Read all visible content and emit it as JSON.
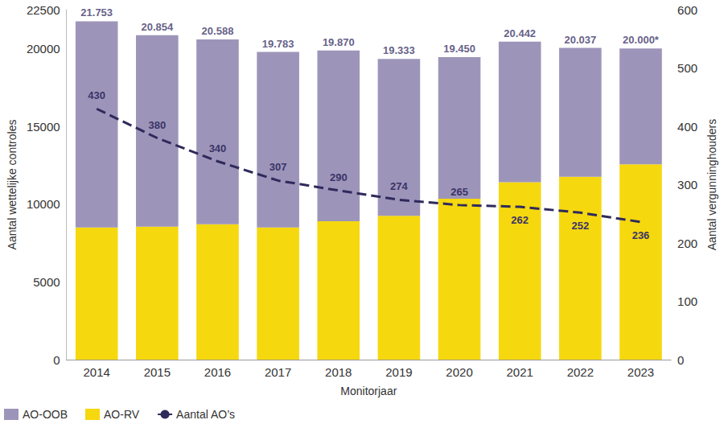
{
  "chart_data": {
    "type": "bar",
    "stacked": true,
    "categories": [
      "2014",
      "2015",
      "2016",
      "2017",
      "2018",
      "2019",
      "2020",
      "2021",
      "2022",
      "2023"
    ],
    "x_label": "Monitorjaar",
    "y_label": "Aantal wettelijke controles",
    "y2_label": "Aantal vergunninghouders",
    "ylim": [
      0,
      22500
    ],
    "yticks": [
      0,
      5000,
      10000,
      15000,
      20000
    ],
    "y2lim": [
      0,
      600
    ],
    "y2ticks": [
      0,
      100,
      200,
      300,
      400,
      500,
      600
    ],
    "grid": false,
    "legend": "bottom left",
    "series": [
      {
        "name": "AO-OOB",
        "type": "bar",
        "color": "#9d95b9",
        "values": [
          13253,
          12304,
          11888,
          11283,
          10970,
          10083,
          9100,
          9042,
          8287,
          7450
        ]
      },
      {
        "name": "AO-RV",
        "type": "bar",
        "color": "#f6d80e",
        "values": [
          8500,
          8550,
          8700,
          8500,
          8900,
          9250,
          10350,
          11400,
          11750,
          12550
        ]
      },
      {
        "name": "Aantal AO’s",
        "type": "line",
        "axis": "y2",
        "line_style": "dashed",
        "color": "#2f2a5c",
        "data_labels": true,
        "values": [
          430,
          380,
          340,
          307,
          290,
          274,
          265,
          262,
          252,
          236
        ]
      }
    ],
    "totals": {
      "values": [
        21753,
        20854,
        20588,
        19783,
        19870,
        19333,
        19450,
        20442,
        20037,
        20000
      ],
      "value_labels": [
        "21.753",
        "20.854",
        "20.588",
        "19.783",
        "19.870",
        "19.333",
        "19.450",
        "20.442",
        "20.037",
        "20.000*"
      ]
    }
  }
}
